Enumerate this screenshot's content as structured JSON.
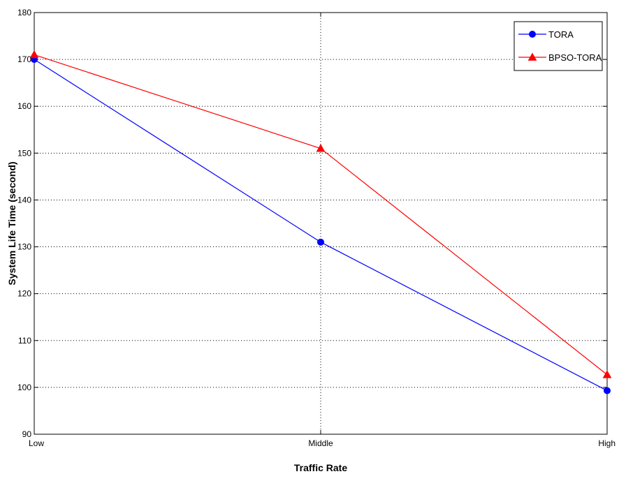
{
  "chart_data": {
    "type": "line",
    "categories": [
      "Low",
      "Middle",
      "High"
    ],
    "xlabel": "Traffic Rate",
    "ylabel": "System Life Time (second)",
    "ylim": [
      90,
      180
    ],
    "yticks": [
      90,
      100,
      110,
      120,
      130,
      140,
      150,
      160,
      170,
      180
    ],
    "grid": true,
    "legend_position": "top-right",
    "series": [
      {
        "name": "TORA",
        "values": [
          170,
          131,
          99.3
        ],
        "color": "#0000ff",
        "marker": "circle"
      },
      {
        "name": "BPSO-TORA",
        "values": [
          171,
          151,
          102.7
        ],
        "color": "#ff0000",
        "marker": "triangle"
      }
    ]
  }
}
